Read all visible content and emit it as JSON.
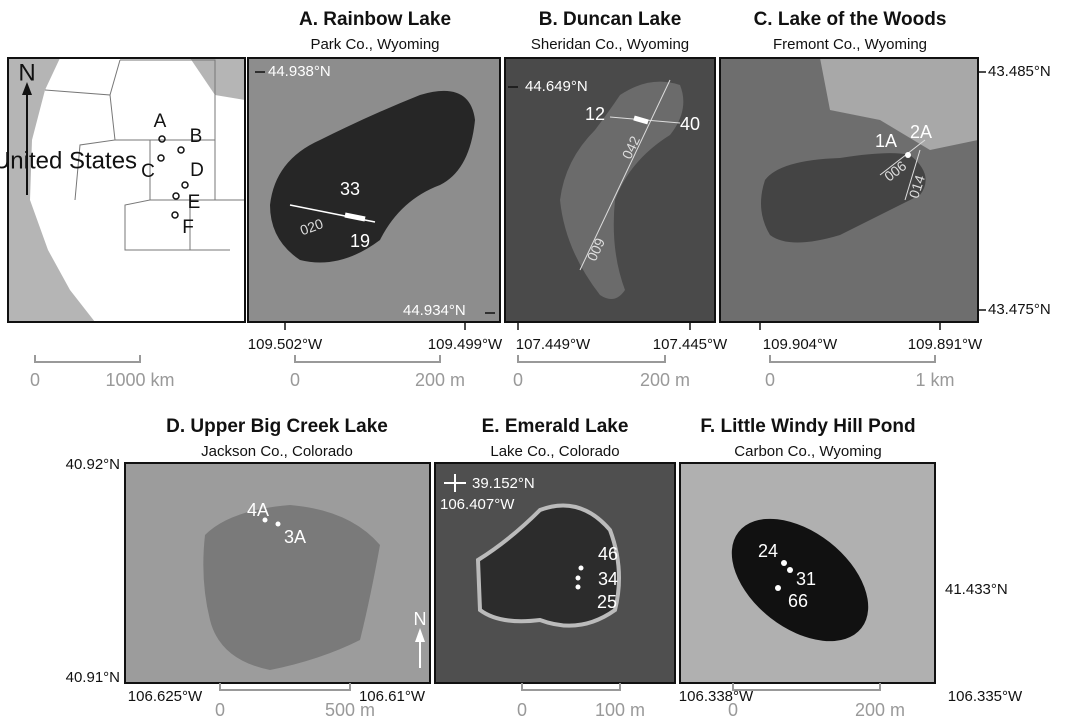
{
  "overview": {
    "north": "N",
    "country": "United States",
    "sites": [
      "A",
      "B",
      "C",
      "D",
      "E",
      "F"
    ],
    "scale": [
      "0",
      "1000 km"
    ]
  },
  "panels": [
    {
      "title": "A. Rainbow Lake",
      "subtitle": "Park Co., Wyoming",
      "coords": [
        "44.938°N",
        "44.934°N",
        "109.502°W",
        "109.499°W"
      ],
      "labels": [
        "33",
        "19",
        "020"
      ],
      "scale": [
        "0",
        "200 m"
      ]
    },
    {
      "title": "B. Duncan Lake",
      "subtitle": "Sheridan Co., Wyoming",
      "coords": [
        "44.649°N",
        "107.449°W",
        "107.445°W"
      ],
      "labels": [
        "12",
        "40",
        "042",
        "009"
      ],
      "scale": [
        "0",
        "200 m"
      ]
    },
    {
      "title": "C. Lake of the Woods",
      "subtitle": "Fremont Co., Wyoming",
      "coords": [
        "43.485°N",
        "43.475°N",
        "109.904°W",
        "109.891°W"
      ],
      "labels": [
        "1A",
        "2A",
        "006",
        "014"
      ],
      "scale": [
        "0",
        "1 km"
      ]
    },
    {
      "title": "D. Upper Big Creek Lake",
      "subtitle": "Jackson Co., Colorado",
      "coords": [
        "40.92°N",
        "40.91°N",
        "106.625°W",
        "106.61°W"
      ],
      "labels": [
        "4A",
        "3A",
        "N"
      ],
      "scale": [
        "0",
        "500 m"
      ]
    },
    {
      "title": "E. Emerald Lake",
      "subtitle": "Lake Co., Colorado",
      "coords": [
        "39.152°N",
        "106.407°W"
      ],
      "labels": [
        "46",
        "34",
        "25"
      ],
      "scale": [
        "0",
        "100 m"
      ]
    },
    {
      "title": "F. Little Windy Hill Pond",
      "subtitle": "Carbon Co., Wyoming",
      "coords": [
        "41.433°N",
        "106.338°W",
        "106.335°W"
      ],
      "labels": [
        "24",
        "31",
        "66"
      ],
      "scale": [
        "0",
        "200 m"
      ]
    }
  ]
}
